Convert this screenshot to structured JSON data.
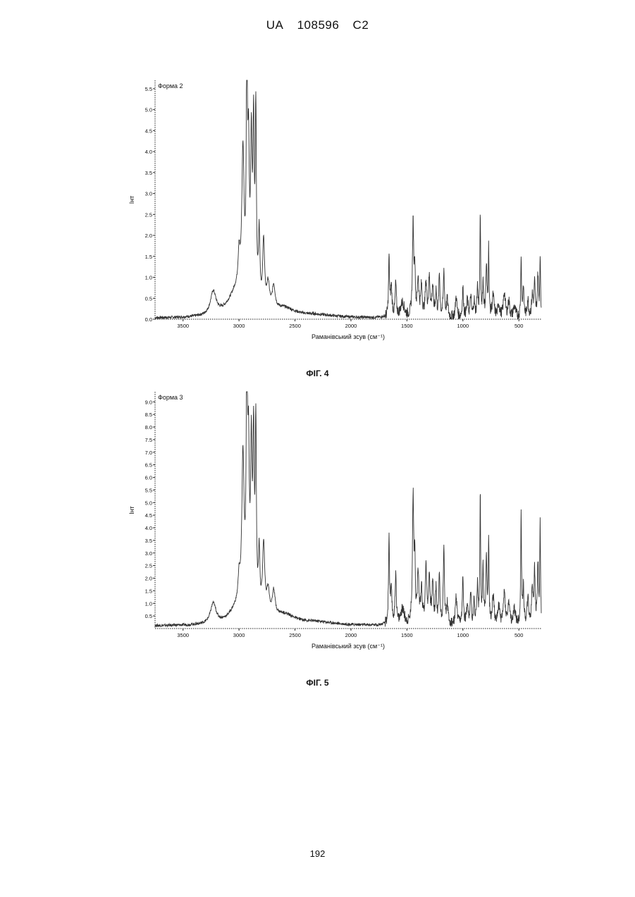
{
  "header": {
    "country": "UA",
    "number": "108596",
    "kind": "C2"
  },
  "page_number": "192",
  "figures": [
    {
      "caption": "ФІГ. 4"
    },
    {
      "caption": "ФІГ. 5"
    }
  ],
  "chart_data": [
    {
      "type": "line",
      "title": "Форма 2",
      "xlabel": "Раманівський зсув (см⁻¹)",
      "ylabel": "Інт",
      "xlim": [
        3750,
        300
      ],
      "ylim": [
        0,
        5.7
      ],
      "x_ticks": [
        3500,
        3000,
        2500,
        2000,
        1500,
        1000,
        500
      ],
      "x_tick_labels": [
        "3500",
        "3000",
        "2500",
        "2000",
        "1500",
        "1000",
        "500"
      ],
      "y_ticks": [
        0,
        0.5,
        1.0,
        1.5,
        2.0,
        2.5,
        3.0,
        3.5,
        4.0,
        4.5,
        5.0,
        5.5
      ],
      "y_tick_labels": [
        "0.0",
        "0.5",
        "1.0",
        "1.5",
        "2.0",
        "2.5",
        "3.0",
        "3.5",
        "4.0",
        "4.5",
        "5.0",
        "5.5"
      ],
      "grid": false,
      "baseline": 0.02,
      "peaks": [
        [
          3230,
          0.55,
          30
        ],
        [
          3020,
          0.6,
          90
        ],
        [
          3000,
          0.8,
          10
        ],
        [
          2965,
          3.4,
          12
        ],
        [
          2930,
          5.7,
          6
        ],
        [
          2915,
          3.2,
          8
        ],
        [
          2890,
          3.6,
          8
        ],
        [
          2870,
          4.0,
          7
        ],
        [
          2850,
          4.4,
          6
        ],
        [
          2820,
          1.7,
          8
        ],
        [
          2780,
          1.6,
          10
        ],
        [
          2740,
          0.6,
          15
        ],
        [
          2690,
          0.55,
          15
        ],
        [
          2600,
          0.2,
          120
        ],
        [
          2300,
          0.06,
          200
        ],
        [
          1660,
          1.4,
          5
        ],
        [
          1640,
          0.7,
          8
        ],
        [
          1600,
          0.8,
          6
        ],
        [
          1540,
          0.35,
          20
        ],
        [
          1445,
          2.2,
          7
        ],
        [
          1430,
          1.1,
          5
        ],
        [
          1400,
          0.9,
          8
        ],
        [
          1370,
          0.7,
          8
        ],
        [
          1330,
          0.8,
          8
        ],
        [
          1300,
          0.9,
          8
        ],
        [
          1270,
          0.7,
          8
        ],
        [
          1240,
          0.6,
          6
        ],
        [
          1210,
          1.0,
          6
        ],
        [
          1170,
          1.1,
          6
        ],
        [
          1140,
          0.4,
          8
        ],
        [
          1060,
          0.5,
          8
        ],
        [
          1000,
          0.7,
          6
        ],
        [
          960,
          0.4,
          8
        ],
        [
          930,
          0.5,
          6
        ],
        [
          900,
          0.4,
          6
        ],
        [
          870,
          0.7,
          6
        ],
        [
          845,
          2.5,
          4
        ],
        [
          820,
          0.8,
          6
        ],
        [
          790,
          1.2,
          6
        ],
        [
          770,
          1.6,
          4
        ],
        [
          730,
          0.5,
          10
        ],
        [
          680,
          0.3,
          10
        ],
        [
          630,
          0.6,
          10
        ],
        [
          590,
          0.4,
          8
        ],
        [
          540,
          0.25,
          12
        ],
        [
          480,
          1.5,
          4
        ],
        [
          460,
          0.7,
          6
        ],
        [
          420,
          0.4,
          8
        ],
        [
          380,
          0.5,
          8
        ],
        [
          360,
          0.8,
          6
        ],
        [
          330,
          1.0,
          6
        ],
        [
          310,
          1.5,
          4
        ]
      ]
    },
    {
      "type": "line",
      "title": "Форма 3",
      "xlabel": "Раманівський зсув (см⁻¹)",
      "ylabel": "Інт",
      "xlim": [
        3750,
        300
      ],
      "ylim": [
        0,
        9.4
      ],
      "x_ticks": [
        3500,
        3000,
        2500,
        2000,
        1500,
        1000,
        500
      ],
      "x_tick_labels": [
        "3500",
        "3000",
        "2500",
        "2000",
        "1500",
        "1000",
        "500"
      ],
      "y_ticks": [
        0.5,
        1.0,
        1.5,
        2.0,
        2.5,
        3.0,
        3.5,
        4.0,
        4.5,
        5.0,
        5.5,
        6.0,
        6.5,
        7.0,
        7.5,
        8.0,
        8.5,
        9.0
      ],
      "y_tick_labels": [
        "0.5",
        "1.0",
        "1.5",
        "2.0",
        "2.5",
        "3.0",
        "3.5",
        "4.0",
        "4.5",
        "5.0",
        "5.5",
        "6.0",
        "6.5",
        "7.0",
        "7.5",
        "8.0",
        "8.5",
        "9.0"
      ],
      "grid": false,
      "baseline": 0.1,
      "peaks": [
        [
          3230,
          0.8,
          30
        ],
        [
          3020,
          0.6,
          80
        ],
        [
          3000,
          1.0,
          10
        ],
        [
          2965,
          6.0,
          12
        ],
        [
          2930,
          9.3,
          7
        ],
        [
          2915,
          5.5,
          8
        ],
        [
          2890,
          6.2,
          8
        ],
        [
          2870,
          6.6,
          7
        ],
        [
          2850,
          7.2,
          6
        ],
        [
          2820,
          2.4,
          8
        ],
        [
          2780,
          2.8,
          12
        ],
        [
          2740,
          1.0,
          15
        ],
        [
          2690,
          1.0,
          15
        ],
        [
          2600,
          0.4,
          120
        ],
        [
          2300,
          0.12,
          200
        ],
        [
          1660,
          3.5,
          5
        ],
        [
          1640,
          1.2,
          8
        ],
        [
          1600,
          2.1,
          6
        ],
        [
          1540,
          0.6,
          20
        ],
        [
          1445,
          5.0,
          7
        ],
        [
          1430,
          2.5,
          5
        ],
        [
          1400,
          2.0,
          8
        ],
        [
          1370,
          1.4,
          8
        ],
        [
          1330,
          2.2,
          8
        ],
        [
          1300,
          1.8,
          8
        ],
        [
          1270,
          1.6,
          8
        ],
        [
          1240,
          1.4,
          6
        ],
        [
          1210,
          2.0,
          6
        ],
        [
          1170,
          3.0,
          6
        ],
        [
          1140,
          0.8,
          8
        ],
        [
          1060,
          1.1,
          8
        ],
        [
          1000,
          1.8,
          6
        ],
        [
          960,
          0.9,
          8
        ],
        [
          930,
          1.2,
          6
        ],
        [
          900,
          0.9,
          6
        ],
        [
          870,
          1.5,
          6
        ],
        [
          845,
          5.3,
          4
        ],
        [
          820,
          2.2,
          6
        ],
        [
          790,
          2.6,
          6
        ],
        [
          770,
          3.2,
          4
        ],
        [
          730,
          1.1,
          10
        ],
        [
          680,
          0.7,
          10
        ],
        [
          630,
          1.3,
          10
        ],
        [
          590,
          0.9,
          8
        ],
        [
          540,
          0.6,
          12
        ],
        [
          480,
          4.6,
          4
        ],
        [
          460,
          1.5,
          6
        ],
        [
          420,
          1.0,
          8
        ],
        [
          380,
          1.4,
          8
        ],
        [
          360,
          2.0,
          6
        ],
        [
          330,
          2.3,
          6
        ],
        [
          310,
          4.0,
          4
        ]
      ]
    }
  ]
}
